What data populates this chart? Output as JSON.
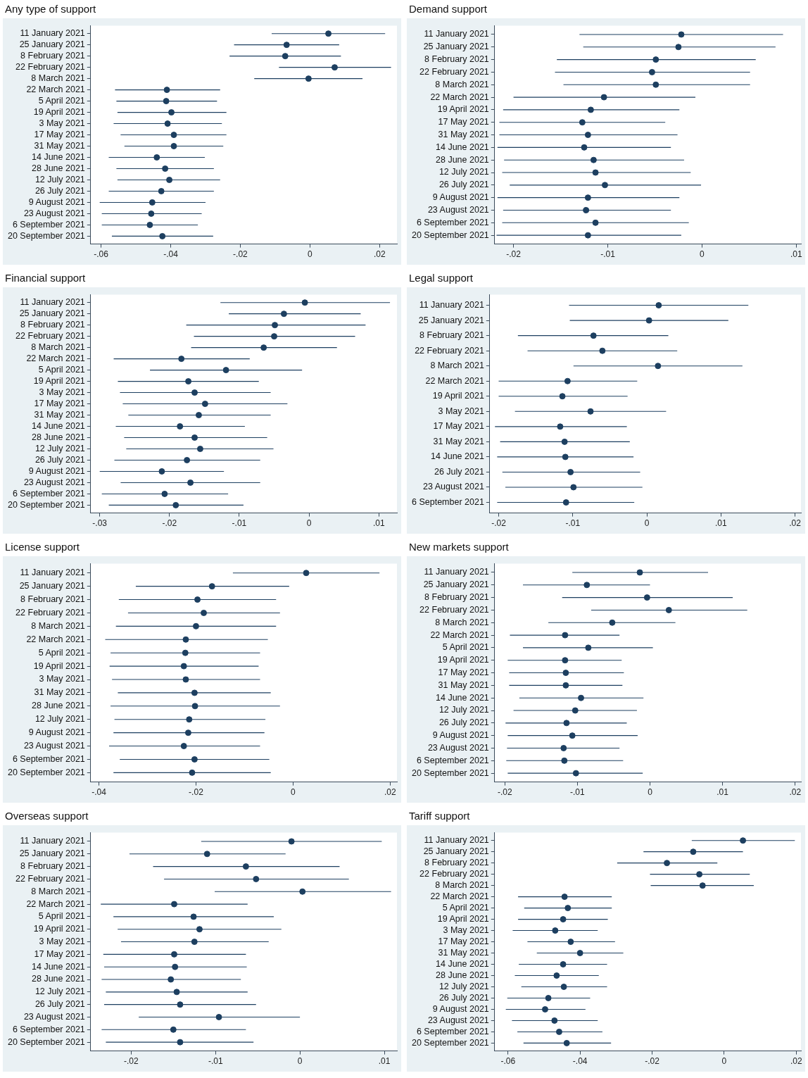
{
  "chart_data": [
    {
      "type": "scatter",
      "orientation": "horizontal",
      "title": "Any type of support",
      "color": "#1d3f60",
      "marker": "circle",
      "grid": false,
      "legend": false,
      "categories": [
        "11 January 2021",
        "25 January 2021",
        "8 February 2021",
        "22 February 2021",
        "8 March 2021",
        "22 March 2021",
        "5 April 2021",
        "19 April 2021",
        "3 May 2021",
        "17 May 2021",
        "31 May 2021",
        "14 June 2021",
        "28 June 2021",
        "12 July 2021",
        "26 July 2021",
        "9 August 2021",
        "23 August 2021",
        "6 September 2021",
        "20 September 2021"
      ],
      "values": [
        0.0053,
        -0.0067,
        -0.0071,
        0.0071,
        -0.0004,
        -0.0411,
        -0.0413,
        -0.0398,
        -0.0409,
        -0.0391,
        -0.0391,
        -0.044,
        -0.0416,
        -0.0404,
        -0.0427,
        -0.0453,
        -0.0456,
        -0.046,
        -0.0424
      ],
      "errors": [
        [
          -0.011,
          0.0216
        ],
        [
          -0.0218,
          0.0084
        ],
        [
          -0.0231,
          0.0089
        ],
        [
          -0.0089,
          0.0233
        ],
        [
          -0.016,
          0.0151
        ],
        [
          -0.056,
          -0.0258
        ],
        [
          -0.0556,
          -0.0267
        ],
        [
          -0.0553,
          -0.024
        ],
        [
          -0.0564,
          -0.0253
        ],
        [
          -0.0544,
          -0.024
        ],
        [
          -0.0533,
          -0.0249
        ],
        [
          -0.0578,
          -0.0302
        ],
        [
          -0.0556,
          -0.0276
        ],
        [
          -0.0553,
          -0.0258
        ],
        [
          -0.0578,
          -0.0276
        ],
        [
          -0.0604,
          -0.03
        ],
        [
          -0.0598,
          -0.0311
        ],
        [
          -0.0598,
          -0.0322
        ],
        [
          -0.0569,
          -0.0278
        ]
      ],
      "xlim": [
        -0.063,
        0.025
      ],
      "xticks": [
        {
          "value": -0.06,
          "label": "-.06"
        },
        {
          "value": -0.04,
          "label": "-.04"
        },
        {
          "value": -0.02,
          "label": "-.02"
        },
        {
          "value": 0,
          "label": "0"
        },
        {
          "value": 0.02,
          "label": ".02"
        }
      ]
    },
    {
      "type": "scatter",
      "orientation": "horizontal",
      "title": "Demand support",
      "color": "#1d3f60",
      "marker": "circle",
      "grid": false,
      "legend": false,
      "categories": [
        "11 January 2021",
        "25 January 2021",
        "8 February 2021",
        "22 February 2021",
        "8 March 2021",
        "22 March 2021",
        "19 April 2021",
        "17 May 2021",
        "31 May 2021",
        "14 June 2021",
        "28 June 2021",
        "12 July 2021",
        "26 July 2021",
        "9 August 2021",
        "23 August 2021",
        "6 September 2021",
        "20 September 2021"
      ],
      "values": [
        -0.0022,
        -0.0025,
        -0.0049,
        -0.0053,
        -0.0049,
        -0.0104,
        -0.0118,
        -0.0127,
        -0.0121,
        -0.0125,
        -0.0115,
        -0.0113,
        -0.0103,
        -0.0121,
        -0.0123,
        -0.0113,
        -0.0121
      ],
      "errors": [
        [
          -0.013,
          0.0086
        ],
        [
          -0.0126,
          0.0078
        ],
        [
          -0.0154,
          0.0057
        ],
        [
          -0.0156,
          0.0051
        ],
        [
          -0.0147,
          0.0051
        ],
        [
          -0.02,
          -0.0007
        ],
        [
          -0.0211,
          -0.0024
        ],
        [
          -0.0215,
          -0.0039
        ],
        [
          -0.0215,
          -0.0026
        ],
        [
          -0.0217,
          -0.0033
        ],
        [
          -0.021,
          -0.0019
        ],
        [
          -0.0212,
          -0.0012
        ],
        [
          -0.0204,
          -0.0001
        ],
        [
          -0.0217,
          -0.0024
        ],
        [
          -0.0211,
          -0.0033
        ],
        [
          -0.0212,
          -0.0014
        ],
        [
          -0.0218,
          -0.0022
        ]
      ],
      "xlim": [
        -0.022,
        0.0105
      ],
      "xticks": [
        {
          "value": -0.02,
          "label": "-.02"
        },
        {
          "value": -0.01,
          "label": "-.01"
        },
        {
          "value": 0,
          "label": "0"
        },
        {
          "value": 0.01,
          "label": ".01"
        }
      ]
    },
    {
      "type": "scatter",
      "orientation": "horizontal",
      "title": "Financial support",
      "color": "#1d3f60",
      "marker": "circle",
      "grid": false,
      "legend": false,
      "categories": [
        "11 January 2021",
        "25 January 2021",
        "8 February 2021",
        "22 February 2021",
        "8 March 2021",
        "22 March 2021",
        "5 April 2021",
        "19 April 2021",
        "3 May 2021",
        "17 May 2021",
        "31 May 2021",
        "14 June 2021",
        "28 June 2021",
        "12 July 2021",
        "26 July 2021",
        "9 August 2021",
        "23 August 2021",
        "6 September 2021",
        "20 September 2021"
      ],
      "values": [
        -0.0006,
        -0.0036,
        -0.0049,
        -0.005,
        -0.0065,
        -0.0183,
        -0.0119,
        -0.0173,
        -0.0164,
        -0.0149,
        -0.0158,
        -0.0185,
        -0.0164,
        -0.0156,
        -0.0175,
        -0.0211,
        -0.017,
        -0.0207,
        -0.0191
      ],
      "errors": [
        [
          -0.0127,
          0.0116
        ],
        [
          -0.0115,
          0.0074
        ],
        [
          -0.0176,
          0.0081
        ],
        [
          -0.0165,
          0.0066
        ],
        [
          -0.0169,
          0.004
        ],
        [
          -0.028,
          -0.0085
        ],
        [
          -0.0228,
          -0.001
        ],
        [
          -0.0274,
          -0.0072
        ],
        [
          -0.0271,
          -0.0055
        ],
        [
          -0.0267,
          -0.0031
        ],
        [
          -0.0259,
          -0.0055
        ],
        [
          -0.0277,
          -0.0092
        ],
        [
          -0.0265,
          -0.006
        ],
        [
          -0.0262,
          -0.0051
        ],
        [
          -0.0279,
          -0.007
        ],
        [
          -0.03,
          -0.0122
        ],
        [
          -0.027,
          -0.007
        ],
        [
          -0.0297,
          -0.0116
        ],
        [
          -0.0287,
          -0.0094
        ]
      ],
      "xlim": [
        -0.0313,
        0.0126
      ],
      "xticks": [
        {
          "value": -0.03,
          "label": "-.03"
        },
        {
          "value": -0.02,
          "label": "-.02"
        },
        {
          "value": -0.01,
          "label": "-.01"
        },
        {
          "value": 0,
          "label": "0"
        },
        {
          "value": 0.01,
          "label": ".01"
        }
      ]
    },
    {
      "type": "scatter",
      "orientation": "horizontal",
      "title": "Legal support",
      "color": "#1d3f60",
      "marker": "circle",
      "grid": false,
      "legend": false,
      "categories": [
        "11 January 2021",
        "25 January 2021",
        "8 February 2021",
        "22 February 2021",
        "8 March 2021",
        "22 March 2021",
        "19 April 2021",
        "3 May 2021",
        "17 May 2021",
        "31 May 2021",
        "14 June 2021",
        "26 July 2021",
        "23 August 2021",
        "6 September 2021"
      ],
      "values": [
        0.0016,
        0.0003,
        -0.0072,
        -0.006,
        0.0015,
        -0.0107,
        -0.0114,
        -0.0076,
        -0.0117,
        -0.0111,
        -0.011,
        -0.0103,
        -0.0099,
        -0.0109
      ],
      "errors": [
        [
          -0.0105,
          0.0137
        ],
        [
          -0.0104,
          0.011
        ],
        [
          -0.0174,
          0.0029
        ],
        [
          -0.0161,
          0.0041
        ],
        [
          -0.0099,
          0.0129
        ],
        [
          -0.02,
          -0.0013
        ],
        [
          -0.02,
          -0.0026
        ],
        [
          -0.0178,
          0.0026
        ],
        [
          -0.0205,
          -0.0027
        ],
        [
          -0.0198,
          -0.0023
        ],
        [
          -0.0202,
          -0.0018
        ],
        [
          -0.0195,
          -0.0009
        ],
        [
          -0.0191,
          -0.0006
        ],
        [
          -0.0202,
          -0.0017
        ]
      ],
      "xlim": [
        -0.0212,
        0.0208
      ],
      "xticks": [
        {
          "value": -0.02,
          "label": "-.02"
        },
        {
          "value": -0.01,
          "label": "-.01"
        },
        {
          "value": 0,
          "label": "0"
        },
        {
          "value": 0.01,
          "label": ".01"
        },
        {
          "value": 0.02,
          "label": ".02"
        }
      ]
    },
    {
      "type": "scatter",
      "orientation": "horizontal",
      "title": "License support",
      "color": "#1d3f60",
      "marker": "circle",
      "grid": false,
      "legend": false,
      "categories": [
        "11 January 2021",
        "25 January 2021",
        "8 February 2021",
        "22 February 2021",
        "8 March 2021",
        "22 March 2021",
        "5 April 2021",
        "19 April 2021",
        "3 May 2021",
        "31 May 2021",
        "28 June 2021",
        "12 July 2021",
        "9 August 2021",
        "23 August 2021",
        "6 September 2021",
        "20 September 2021"
      ],
      "values": [
        0.0027,
        -0.0167,
        -0.0197,
        -0.0184,
        -0.02,
        -0.0221,
        -0.0222,
        -0.0225,
        -0.0221,
        -0.0203,
        -0.0202,
        -0.0214,
        -0.0216,
        -0.0225,
        -0.0203,
        -0.0208
      ],
      "errors": [
        [
          -0.0124,
          0.0178
        ],
        [
          -0.0324,
          -0.0008
        ],
        [
          -0.0359,
          -0.0035
        ],
        [
          -0.034,
          -0.0027
        ],
        [
          -0.0365,
          -0.0035
        ],
        [
          -0.0387,
          -0.0052
        ],
        [
          -0.0376,
          -0.0068
        ],
        [
          -0.0378,
          -0.0071
        ],
        [
          -0.0373,
          -0.0068
        ],
        [
          -0.0361,
          -0.0046
        ],
        [
          -0.0376,
          -0.0027
        ],
        [
          -0.0368,
          -0.0057
        ],
        [
          -0.037,
          -0.0059
        ],
        [
          -0.0379,
          -0.0068
        ],
        [
          -0.0357,
          -0.0049
        ],
        [
          -0.037,
          -0.0046
        ]
      ],
      "xlim": [
        -0.0417,
        0.0214
      ],
      "xticks": [
        {
          "value": -0.04,
          "label": "-.04"
        },
        {
          "value": -0.02,
          "label": "-.02"
        },
        {
          "value": 0,
          "label": "0"
        },
        {
          "value": 0.02,
          "label": ".02"
        }
      ]
    },
    {
      "type": "scatter",
      "orientation": "horizontal",
      "title": "New markets support",
      "color": "#1d3f60",
      "marker": "circle",
      "grid": false,
      "legend": false,
      "categories": [
        "11 January 2021",
        "25 January 2021",
        "8 February 2021",
        "22 February 2021",
        "8 March 2021",
        "22 March 2021",
        "5 April 2021",
        "19 April 2021",
        "17 May 2021",
        "31 May 2021",
        "14 June 2021",
        "12 July 2021",
        "26 July 2021",
        "9 August 2021",
        "23 August 2021",
        "6 September 2021",
        "20 September 2021"
      ],
      "values": [
        -0.0014,
        -0.0087,
        -0.0004,
        0.0026,
        -0.0052,
        -0.0117,
        -0.0085,
        -0.0117,
        -0.0116,
        -0.0116,
        -0.0095,
        -0.0103,
        -0.0115,
        -0.0107,
        -0.0119,
        -0.0118,
        -0.0102
      ],
      "errors": [
        [
          -0.0107,
          0.008
        ],
        [
          -0.0175,
          0
        ],
        [
          -0.0121,
          0.0114
        ],
        [
          -0.0081,
          0.0134
        ],
        [
          -0.014,
          0.0035
        ],
        [
          -0.0193,
          -0.0042
        ],
        [
          -0.0175,
          0.0004
        ],
        [
          -0.0196,
          -0.0039
        ],
        [
          -0.0194,
          -0.0036
        ],
        [
          -0.0194,
          -0.0038
        ],
        [
          -0.018,
          -0.0009
        ],
        [
          -0.0188,
          -0.0018
        ],
        [
          -0.0199,
          -0.0032
        ],
        [
          -0.0196,
          -0.0017
        ],
        [
          -0.0197,
          -0.0042
        ],
        [
          -0.0198,
          -0.0037
        ],
        [
          -0.0196,
          -0.001
        ]
      ],
      "xlim": [
        -0.0214,
        0.0208
      ],
      "xticks": [
        {
          "value": -0.02,
          "label": "-.02"
        },
        {
          "value": -0.01,
          "label": "-.01"
        },
        {
          "value": 0,
          "label": "0"
        },
        {
          "value": 0.01,
          "label": ".01"
        },
        {
          "value": 0.02,
          "label": ".02"
        }
      ]
    },
    {
      "type": "scatter",
      "orientation": "horizontal",
      "title": "Overseas support",
      "color": "#1d3f60",
      "marker": "circle",
      "grid": false,
      "legend": false,
      "categories": [
        "11 January 2021",
        "25 January 2021",
        "8 February 2021",
        "22 February 2021",
        "8 March 2021",
        "22 March 2021",
        "5 April 2021",
        "19 April 2021",
        "3 May 2021",
        "17 May 2021",
        "14 June 2021",
        "28 June 2021",
        "12 July 2021",
        "26 July 2021",
        "23 August 2021",
        "6 September 2021",
        "20 September 2021"
      ],
      "values": [
        -0.001,
        -0.011,
        -0.0064,
        -0.0052,
        0.0003,
        -0.0149,
        -0.0126,
        -0.0119,
        -0.0125,
        -0.0149,
        -0.0148,
        -0.0153,
        -0.0146,
        -0.0142,
        -0.0096,
        -0.015,
        -0.0142
      ],
      "errors": [
        [
          -0.0117,
          0.0097
        ],
        [
          -0.0202,
          -0.0017
        ],
        [
          -0.0174,
          0.0047
        ],
        [
          -0.0161,
          0.0058
        ],
        [
          -0.0101,
          0.0108
        ],
        [
          -0.0236,
          -0.0062
        ],
        [
          -0.0221,
          -0.0031
        ],
        [
          -0.0216,
          -0.0022
        ],
        [
          -0.0212,
          -0.0037
        ],
        [
          -0.0233,
          -0.0064
        ],
        [
          -0.0232,
          -0.0063
        ],
        [
          -0.0235,
          -0.007
        ],
        [
          -0.023,
          -0.0062
        ],
        [
          -0.0232,
          -0.0052
        ],
        [
          -0.0191,
          0
        ],
        [
          -0.0235,
          -0.0064
        ],
        [
          -0.023,
          -0.0055
        ]
      ],
      "xlim": [
        -0.0248,
        0.0115
      ],
      "xticks": [
        {
          "value": -0.02,
          "label": "-.02"
        },
        {
          "value": -0.01,
          "label": "-.01"
        },
        {
          "value": 0,
          "label": "0"
        },
        {
          "value": 0.01,
          "label": ".01"
        }
      ]
    },
    {
      "type": "scatter",
      "orientation": "horizontal",
      "title": "Tariff support",
      "color": "#1d3f60",
      "marker": "circle",
      "grid": false,
      "legend": false,
      "categories": [
        "11 January 2021",
        "25 January 2021",
        "8 February 2021",
        "22 February 2021",
        "8 March 2021",
        "22 March 2021",
        "5 April 2021",
        "19 April 2021",
        "3 May 2021",
        "17 May 2021",
        "31 May 2021",
        "14 June 2021",
        "28 June 2021",
        "12 July 2021",
        "26 July 2021",
        "9 August 2021",
        "23 August 2021",
        "6 September 2021",
        "20 September 2021"
      ],
      "values": [
        0.0052,
        -0.0086,
        -0.0159,
        -0.0069,
        -0.006,
        -0.0443,
        -0.0434,
        -0.0447,
        -0.0469,
        -0.0426,
        -0.04,
        -0.0447,
        -0.0465,
        -0.0445,
        -0.0488,
        -0.0497,
        -0.0471,
        -0.0458,
        -0.0437
      ],
      "errors": [
        [
          -0.009,
          0.0196
        ],
        [
          -0.0224,
          0.0052
        ],
        [
          -0.0297,
          -0.0019
        ],
        [
          -0.0206,
          0.0071
        ],
        [
          -0.0204,
          0.0082
        ],
        [
          -0.0572,
          -0.0312
        ],
        [
          -0.0555,
          -0.0312
        ],
        [
          -0.0572,
          -0.0323
        ],
        [
          -0.0587,
          -0.0351
        ],
        [
          -0.0546,
          -0.0303
        ],
        [
          -0.052,
          -0.028
        ],
        [
          -0.057,
          -0.0325
        ],
        [
          -0.0581,
          -0.0348
        ],
        [
          -0.0563,
          -0.0325
        ],
        [
          -0.0602,
          -0.0372
        ],
        [
          -0.0606,
          -0.0385
        ],
        [
          -0.0589,
          -0.0351
        ],
        [
          -0.0574,
          -0.0338
        ],
        [
          -0.0557,
          -0.0314
        ]
      ],
      "xlim": [
        -0.0637,
        0.0213
      ],
      "xticks": [
        {
          "value": -0.06,
          "label": "-.06"
        },
        {
          "value": -0.04,
          "label": "-.04"
        },
        {
          "value": -0.02,
          "label": "-.02"
        },
        {
          "value": 0,
          "label": "0"
        },
        {
          "value": 0.02,
          "label": ".02"
        }
      ]
    }
  ]
}
